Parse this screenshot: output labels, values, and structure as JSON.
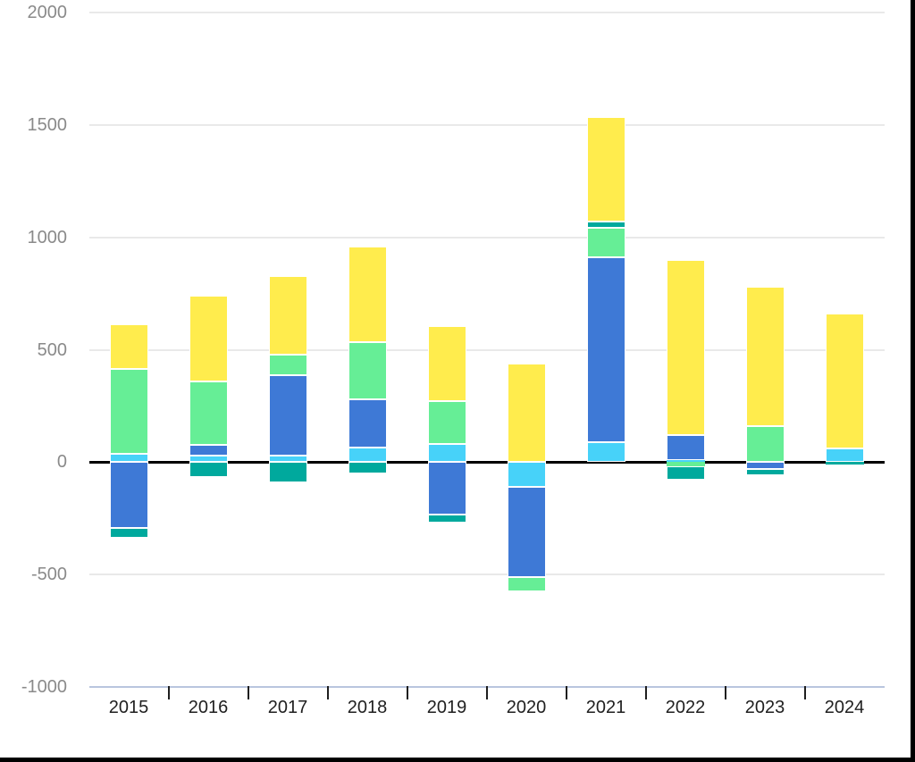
{
  "chart_data": {
    "type": "bar",
    "stacked": true,
    "title": "",
    "xlabel": "",
    "ylabel": "",
    "ylim": [
      -1000,
      2000
    ],
    "y_ticks": [
      2000,
      1500,
      1000,
      500,
      0,
      -500,
      -1000
    ],
    "grid": true,
    "legend": "none",
    "categories": [
      "2015",
      "2016",
      "2017",
      "2018",
      "2019",
      "2020",
      "2021",
      "2022",
      "2023",
      "2024"
    ],
    "series": [
      {
        "name": "cyan",
        "color": "#47D2F9",
        "values": [
          35,
          30,
          30,
          65,
          80,
          -110,
          90,
          10,
          0,
          60
        ]
      },
      {
        "name": "blue",
        "color": "#3E79D6",
        "values": [
          -295,
          45,
          355,
          215,
          -235,
          -400,
          820,
          110,
          -30,
          0
        ]
      },
      {
        "name": "green",
        "color": "#66EE96",
        "values": [
          380,
          285,
          95,
          255,
          190,
          -65,
          135,
          -20,
          160,
          0
        ]
      },
      {
        "name": "teal",
        "color": "#00A99D",
        "values": [
          -40,
          -65,
          -90,
          -50,
          -35,
          0,
          25,
          -60,
          -30,
          -10
        ]
      },
      {
        "name": "yellow",
        "color": "#FFEC4D",
        "values": [
          200,
          380,
          350,
          425,
          335,
          440,
          465,
          780,
          620,
          600
        ]
      }
    ]
  },
  "colors": {
    "background": "#ffffff",
    "gridline": "#e9e9e9",
    "zero_line": "#000000",
    "baseline": "#b9c5de",
    "tick": "#1f1f1f",
    "y_label": "#8a8a8a",
    "x_label": "#1f1f1f",
    "segment_stroke": "#ffffff",
    "frame_border": "#000000"
  }
}
